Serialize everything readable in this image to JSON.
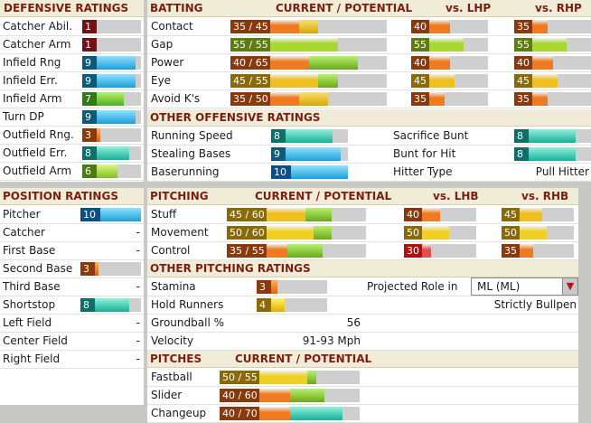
{
  "defensive": {
    "title": "DEFENSIVE RATINGS",
    "rows": [
      {
        "label": "Catcher Abil.",
        "value": "1",
        "level": 0.08
      },
      {
        "label": "Catcher Arm",
        "value": "1",
        "level": 0.08
      },
      {
        "label": "Infield Rng",
        "value": "9",
        "level": 0.9
      },
      {
        "label": "Infield Err.",
        "value": "9",
        "level": 0.9
      },
      {
        "label": "Infield Arm",
        "value": "7",
        "level": 0.7
      },
      {
        "label": "Turn DP",
        "value": "9",
        "level": 0.9
      },
      {
        "label": "Outfield Rng.",
        "value": "3",
        "level": 0.3
      },
      {
        "label": "Outfield Err.",
        "value": "8",
        "level": 0.8
      },
      {
        "label": "Outfield Arm",
        "value": "6",
        "level": 0.6
      }
    ]
  },
  "batting": {
    "title": "BATTING",
    "col_current": "CURRENT / POTENTIAL",
    "col_lhp": "vs. LHP",
    "col_rhp": "vs. RHP",
    "rows": [
      {
        "label": "Contact",
        "cp": "35 / 45",
        "cur": 35,
        "pot": 45,
        "lhp": "40",
        "lhp_v": 40,
        "rhp": "35",
        "rhp_v": 35
      },
      {
        "label": "Gap",
        "cp": "55 / 55",
        "cur": 55,
        "pot": 55,
        "lhp": "55",
        "lhp_v": 55,
        "rhp": "55",
        "rhp_v": 55
      },
      {
        "label": "Power",
        "cp": "40 / 65",
        "cur": 40,
        "pot": 65,
        "lhp": "40",
        "lhp_v": 40,
        "rhp": "40",
        "rhp_v": 40
      },
      {
        "label": "Eye",
        "cp": "45 / 55",
        "cur": 45,
        "pot": 55,
        "lhp": "45",
        "lhp_v": 45,
        "rhp": "45",
        "rhp_v": 45
      },
      {
        "label": "Avoid K's",
        "cp": "35 / 50",
        "cur": 35,
        "pot": 50,
        "lhp": "35",
        "lhp_v": 35,
        "rhp": "35",
        "rhp_v": 35
      }
    ]
  },
  "other_offense": {
    "title": "OTHER OFFENSIVE RATINGS",
    "left": [
      {
        "label": "Running Speed",
        "value": "8",
        "level": 0.8
      },
      {
        "label": "Stealing Bases",
        "value": "9",
        "level": 0.9
      },
      {
        "label": "Baserunning",
        "value": "10",
        "level": 1.0
      }
    ],
    "right": [
      {
        "label": "Sacrifice Bunt",
        "value": "8",
        "level": 0.8
      },
      {
        "label": "Bunt for Hit",
        "value": "8",
        "level": 0.8
      }
    ],
    "hitter_type_label": "Hitter Type",
    "hitter_type_value": "Pull Hitter"
  },
  "position": {
    "title": "POSITION RATINGS",
    "rows": [
      {
        "label": "Pitcher",
        "value": "10",
        "level": 1.0,
        "bar": true
      },
      {
        "label": "Catcher",
        "value": "-",
        "bar": false
      },
      {
        "label": "First Base",
        "value": "-",
        "bar": false
      },
      {
        "label": "Second Base",
        "value": "3",
        "level": 0.3,
        "bar": true
      },
      {
        "label": "Third Base",
        "value": "-",
        "bar": false
      },
      {
        "label": "Shortstop",
        "value": "8",
        "level": 0.8,
        "bar": true
      },
      {
        "label": "Left Field",
        "value": "-",
        "bar": false
      },
      {
        "label": "Center Field",
        "value": "-",
        "bar": false
      },
      {
        "label": "Right Field",
        "value": "-",
        "bar": false
      }
    ]
  },
  "pitching": {
    "title": "PITCHING",
    "col_current": "CURRENT / POTENTIAL",
    "col_lhb": "vs. LHB",
    "col_rhb": "vs. RHB",
    "rows": [
      {
        "label": "Stuff",
        "cp": "45 / 60",
        "cur": 45,
        "pot": 60,
        "lhb": "40",
        "lhb_v": 40,
        "rhb": "45",
        "rhb_v": 45
      },
      {
        "label": "Movement",
        "cp": "50 / 60",
        "cur": 50,
        "pot": 60,
        "lhb": "50",
        "lhb_v": 50,
        "rhb": "50",
        "rhb_v": 50
      },
      {
        "label": "Control",
        "cp": "35 / 55",
        "cur": 35,
        "pot": 55,
        "lhb": "30",
        "lhb_v": 30,
        "rhb": "35",
        "rhb_v": 35
      }
    ]
  },
  "other_pitching": {
    "title": "OTHER PITCHING RATINGS",
    "stamina_label": "Stamina",
    "stamina_value": "3",
    "stamina_level": 0.3,
    "hold_label": "Hold Runners",
    "hold_value": "4",
    "hold_level": 0.4,
    "gb_label": "Groundball %",
    "gb_value": "56",
    "velo_label": "Velocity",
    "velo_value": "91-93 Mph",
    "role_label": "Projected Role in",
    "role_value": "ML (ML)",
    "role_desc": "Strictly Bullpen"
  },
  "pitches": {
    "title": "PITCHES",
    "col_current": "CURRENT / POTENTIAL",
    "rows": [
      {
        "label": "Fastball",
        "cp": "50 / 55",
        "cur": 50,
        "pot": 55
      },
      {
        "label": "Slider",
        "cp": "40 / 60",
        "cur": 40,
        "pot": 60
      },
      {
        "label": "Changeup",
        "cp": "40 / 70",
        "cur": 40,
        "pot": 70
      }
    ]
  },
  "colors": {
    "r1": "#6e1418",
    "r3": "#8a3a0a",
    "r4": "#8a6a06",
    "r5": "#5f7c10",
    "r6": "#4a7a10",
    "r7": "#2f7a12",
    "r8": "#0e6e6a",
    "r9": "#0b5a7a",
    "r10": "#0b4f86"
  }
}
